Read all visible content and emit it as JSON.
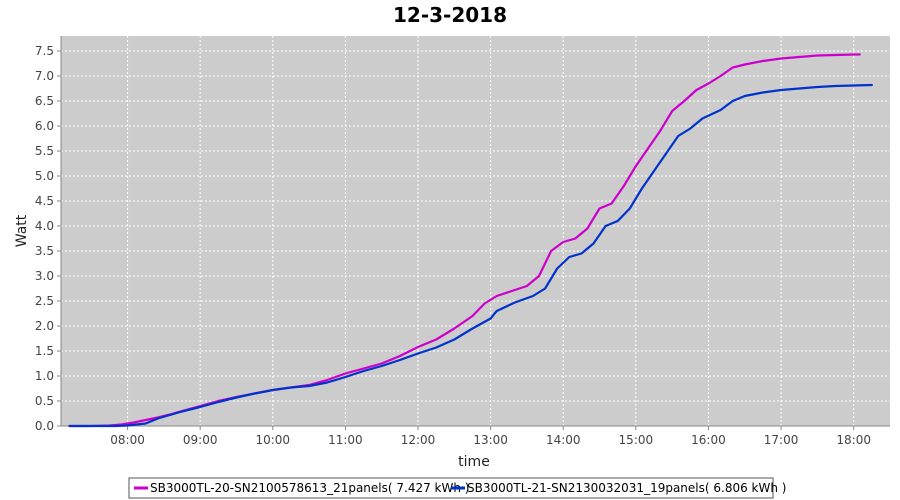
{
  "chart_data": {
    "type": "line",
    "title": "12-3-2018",
    "xlabel": "time",
    "ylabel": "Watt",
    "x_ticks": [
      "08:00",
      "09:00",
      "10:00",
      "11:00",
      "12:00",
      "13:00",
      "14:00",
      "15:00",
      "16:00",
      "17:00",
      "18:00"
    ],
    "y_ticks": [
      "0.0",
      "0.5",
      "1.0",
      "1.5",
      "2.0",
      "2.5",
      "3.0",
      "3.5",
      "4.0",
      "4.5",
      "5.0",
      "5.5",
      "6.0",
      "6.5",
      "7.0",
      "7.5"
    ],
    "xlim": [
      "07:05",
      "18:30"
    ],
    "ylim": [
      0,
      7.8
    ],
    "grid": true,
    "legend_position": "bottom",
    "series": [
      {
        "name": "SB3000TL-20-SN2100578613_21panels( 7.427 kWh )",
        "color": "#cc00cc",
        "points": [
          [
            "07:12",
            0.0
          ],
          [
            "07:30",
            0.0
          ],
          [
            "07:45",
            0.01
          ],
          [
            "07:55",
            0.03
          ],
          [
            "08:05",
            0.07
          ],
          [
            "08:15",
            0.12
          ],
          [
            "08:25",
            0.17
          ],
          [
            "08:35",
            0.23
          ],
          [
            "08:45",
            0.3
          ],
          [
            "09:00",
            0.4
          ],
          [
            "09:15",
            0.5
          ],
          [
            "09:30",
            0.58
          ],
          [
            "09:45",
            0.65
          ],
          [
            "10:00",
            0.72
          ],
          [
            "10:15",
            0.77
          ],
          [
            "10:30",
            0.82
          ],
          [
            "10:45",
            0.92
          ],
          [
            "11:00",
            1.05
          ],
          [
            "11:15",
            1.15
          ],
          [
            "11:30",
            1.25
          ],
          [
            "11:45",
            1.4
          ],
          [
            "12:00",
            1.58
          ],
          [
            "12:15",
            1.73
          ],
          [
            "12:30",
            1.95
          ],
          [
            "12:45",
            2.2
          ],
          [
            "12:55",
            2.45
          ],
          [
            "13:05",
            2.6
          ],
          [
            "13:20",
            2.72
          ],
          [
            "13:30",
            2.8
          ],
          [
            "13:40",
            3.0
          ],
          [
            "13:50",
            3.5
          ],
          [
            "14:00",
            3.68
          ],
          [
            "14:10",
            3.75
          ],
          [
            "14:20",
            3.95
          ],
          [
            "14:30",
            4.35
          ],
          [
            "14:40",
            4.45
          ],
          [
            "14:50",
            4.8
          ],
          [
            "15:00",
            5.2
          ],
          [
            "15:10",
            5.55
          ],
          [
            "15:20",
            5.9
          ],
          [
            "15:30",
            6.3
          ],
          [
            "15:40",
            6.5
          ],
          [
            "15:50",
            6.72
          ],
          [
            "16:00",
            6.85
          ],
          [
            "16:10",
            7.0
          ],
          [
            "16:20",
            7.17
          ],
          [
            "16:30",
            7.23
          ],
          [
            "16:45",
            7.3
          ],
          [
            "17:00",
            7.35
          ],
          [
            "17:15",
            7.38
          ],
          [
            "17:30",
            7.41
          ],
          [
            "17:45",
            7.42
          ],
          [
            "18:00",
            7.43
          ],
          [
            "18:05",
            7.43
          ]
        ]
      },
      {
        "name": "SB3000TL-21-SN2130032031_19panels( 6.806 kWh )",
        "color": "#0033cc",
        "points": [
          [
            "07:12",
            0.0
          ],
          [
            "07:30",
            0.0
          ],
          [
            "07:50",
            0.0
          ],
          [
            "08:00",
            0.01
          ],
          [
            "08:15",
            0.05
          ],
          [
            "08:25",
            0.15
          ],
          [
            "08:35",
            0.22
          ],
          [
            "08:45",
            0.29
          ],
          [
            "09:00",
            0.38
          ],
          [
            "09:15",
            0.48
          ],
          [
            "09:30",
            0.57
          ],
          [
            "09:45",
            0.65
          ],
          [
            "10:00",
            0.72
          ],
          [
            "10:15",
            0.77
          ],
          [
            "10:30",
            0.8
          ],
          [
            "10:45",
            0.87
          ],
          [
            "11:00",
            0.98
          ],
          [
            "11:15",
            1.1
          ],
          [
            "11:30",
            1.2
          ],
          [
            "11:45",
            1.32
          ],
          [
            "12:00",
            1.45
          ],
          [
            "12:15",
            1.57
          ],
          [
            "12:30",
            1.73
          ],
          [
            "12:45",
            1.95
          ],
          [
            "13:00",
            2.15
          ],
          [
            "13:05",
            2.3
          ],
          [
            "13:20",
            2.47
          ],
          [
            "13:35",
            2.6
          ],
          [
            "13:45",
            2.75
          ],
          [
            "13:55",
            3.15
          ],
          [
            "14:05",
            3.38
          ],
          [
            "14:15",
            3.45
          ],
          [
            "14:25",
            3.65
          ],
          [
            "14:35",
            4.0
          ],
          [
            "14:45",
            4.1
          ],
          [
            "14:55",
            4.35
          ],
          [
            "15:05",
            4.75
          ],
          [
            "15:15",
            5.1
          ],
          [
            "15:25",
            5.45
          ],
          [
            "15:35",
            5.8
          ],
          [
            "15:45",
            5.95
          ],
          [
            "15:55",
            6.15
          ],
          [
            "16:10",
            6.32
          ],
          [
            "16:20",
            6.5
          ],
          [
            "16:30",
            6.6
          ],
          [
            "16:45",
            6.67
          ],
          [
            "17:00",
            6.72
          ],
          [
            "17:15",
            6.75
          ],
          [
            "17:30",
            6.78
          ],
          [
            "17:45",
            6.8
          ],
          [
            "18:00",
            6.81
          ],
          [
            "18:15",
            6.82
          ]
        ]
      }
    ]
  }
}
